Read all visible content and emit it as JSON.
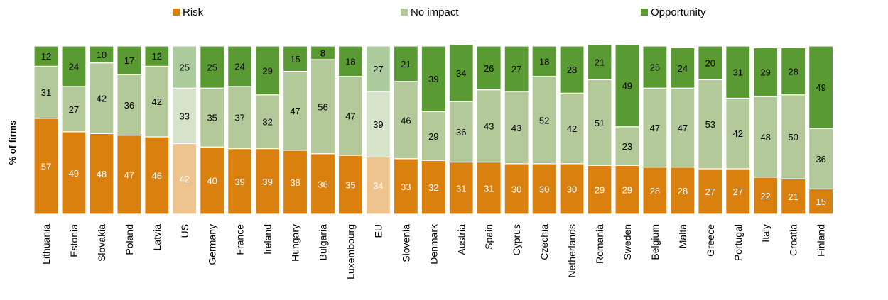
{
  "chart_data": {
    "type": "bar",
    "stacked": true,
    "ylabel": "% of firms",
    "ylim": [
      0,
      100
    ],
    "legend_position": "top",
    "grid": false,
    "categories": [
      "Lithuania",
      "Estonia",
      "Slovakia",
      "Poland",
      "Latvia",
      "US",
      "Germany",
      "France",
      "Ireland",
      "Hungary",
      "Bulgaria",
      "Luxembourg",
      "EU",
      "Slovenia",
      "Denmark",
      "Austria",
      "Spain",
      "Cyprus",
      "Czechia",
      "Netherlands",
      "Romania",
      "Sweden",
      "Belgium",
      "Malta",
      "Greece",
      "Portugal",
      "Italy",
      "Croatia",
      "Finland"
    ],
    "highlighted_categories": [
      "US",
      "EU"
    ],
    "series": [
      {
        "name": "Risk",
        "color": "#D9800F",
        "highlight_color": "#EDC38E",
        "values": [
          57,
          49,
          48,
          47,
          46,
          42,
          40,
          39,
          39,
          38,
          36,
          35,
          34,
          33,
          32,
          31,
          31,
          30,
          30,
          30,
          29,
          29,
          28,
          28,
          27,
          27,
          22,
          21,
          15
        ]
      },
      {
        "name": "No impact",
        "color": "#B3C99A",
        "highlight_color": "#D6E2CA",
        "values": [
          31,
          27,
          42,
          36,
          42,
          33,
          35,
          37,
          32,
          47,
          56,
          47,
          39,
          46,
          29,
          36,
          43,
          43,
          52,
          42,
          51,
          23,
          47,
          47,
          53,
          42,
          48,
          50,
          36
        ]
      },
      {
        "name": "Opportunity",
        "color": "#5A9A32",
        "highlight_color": "#ABCB9D",
        "values": [
          12,
          24,
          10,
          17,
          12,
          25,
          25,
          24,
          29,
          15,
          8,
          18,
          27,
          21,
          39,
          34,
          26,
          27,
          18,
          28,
          21,
          49,
          25,
          24,
          20,
          31,
          29,
          28,
          49
        ]
      }
    ]
  }
}
